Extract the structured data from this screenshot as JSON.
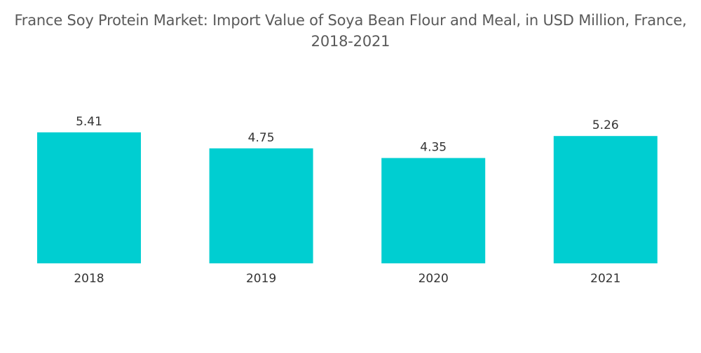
{
  "chart_data": {
    "type": "bar",
    "title": "France Soy Protein Market: Import Value of Soya Bean Flour and Meal, in USD Million, France, 2018-2021",
    "xlabel": "",
    "ylabel": "",
    "categories": [
      "2018",
      "2019",
      "2020",
      "2021"
    ],
    "values": [
      5.41,
      4.75,
      4.35,
      5.26
    ],
    "data_labels": [
      "5.41",
      "4.75",
      "4.35",
      "5.26"
    ],
    "ylim": [
      0,
      5.41
    ],
    "grid": false,
    "legend": "none",
    "bar_color": "#00CED1"
  }
}
